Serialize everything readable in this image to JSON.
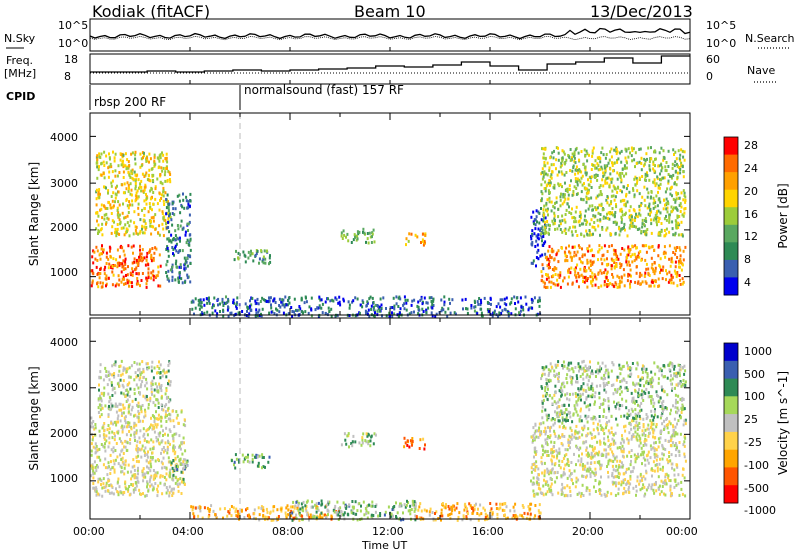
{
  "header": {
    "radar": "Kodiak (fitACF)",
    "beam": "Beam 10",
    "date": "13/Dec/2013"
  },
  "side_labels": {
    "nsky": "N.Sky",
    "freq_line1": "Freq.",
    "freq_line2": "[MHz]",
    "cpid": "CPID",
    "nsearch": "N.Search",
    "nave": "Nave"
  },
  "sky_axis": {
    "ticks_left": [
      "10^5",
      "10^0"
    ],
    "ticks_right": [
      "10^5",
      "10^0"
    ]
  },
  "freq_axis": {
    "ticks_left": [
      "18",
      "8"
    ],
    "ticks_right": [
      "60",
      "0"
    ]
  },
  "cpid": {
    "segments": [
      {
        "start_h": 0,
        "label": "rbsp 200 RF"
      },
      {
        "start_h": 6,
        "label": "normalsound (fast) 157 RF"
      }
    ]
  },
  "colors": {
    "power": [
      "#0000ee",
      "#3a5fb0",
      "#2e8a55",
      "#5aa860",
      "#9ccc3a",
      "#ffd400",
      "#ffa000",
      "#ff6a00",
      "#ff0000"
    ],
    "velocity": [
      "#ff0000",
      "#ff5500",
      "#ffa500",
      "#ffd24a",
      "#c0c0c0",
      "#a6d85a",
      "#2e8a55",
      "#3a5fb0",
      "#0000cc"
    ]
  },
  "chart_data": [
    {
      "type": "heatmap",
      "name": "power",
      "xlabel": "",
      "ylabel": "Slant Range [km]",
      "xlim_hours": [
        0,
        24
      ],
      "ylim_km": [
        180,
        4500
      ],
      "yticks": [
        "1000",
        "2000",
        "3000",
        "4000"
      ],
      "colorbar": {
        "label": "Power [dB]",
        "ticks": [
          "28",
          "24",
          "20",
          "16",
          "12",
          "8",
          "4"
        ]
      },
      "regions": [
        {
          "t": [
            0.0,
            2.8
          ],
          "r": [
            800,
            1700
          ],
          "level": 0.85
        },
        {
          "t": [
            0.2,
            3.2
          ],
          "r": [
            1900,
            3700
          ],
          "level": 0.6
        },
        {
          "t": [
            3.0,
            4.0
          ],
          "r": [
            900,
            2800
          ],
          "level": 0.2
        },
        {
          "t": [
            5.6,
            7.2
          ],
          "r": [
            1300,
            1600
          ],
          "level": 0.3
        },
        {
          "t": [
            10.0,
            11.4
          ],
          "r": [
            1750,
            2050
          ],
          "level": 0.4
        },
        {
          "t": [
            12.5,
            13.4
          ],
          "r": [
            1700,
            1950
          ],
          "level": 0.7
        },
        {
          "t": [
            4.0,
            18.0
          ],
          "r": [
            180,
            600
          ],
          "level": 0.15
        },
        {
          "t": [
            17.6,
            18.2
          ],
          "r": [
            1200,
            2500
          ],
          "level": 0.1
        },
        {
          "t": [
            18.0,
            23.8
          ],
          "r": [
            800,
            1700
          ],
          "level": 0.8
        },
        {
          "t": [
            18.0,
            23.8
          ],
          "r": [
            1900,
            3800
          ],
          "level": 0.5
        }
      ]
    },
    {
      "type": "heatmap",
      "name": "velocity",
      "xlabel": "Time UT",
      "ylabel": "Slant Range [km]",
      "xlim_hours": [
        0,
        24
      ],
      "ylim_km": [
        180,
        4500
      ],
      "xticks": [
        "00:00",
        "04:00",
        "08:00",
        "12:00",
        "16:00",
        "20:00",
        "00:00"
      ],
      "yticks": [
        "1000",
        "2000",
        "3000",
        "4000"
      ],
      "colorbar": {
        "label": "Velocity [m s^-1]",
        "ticks": [
          "1000",
          "500",
          "100",
          "25",
          "-25",
          "-100",
          "-500",
          "-1000"
        ]
      },
      "regions": [
        {
          "t": [
            0.0,
            3.8
          ],
          "r": [
            700,
            2600
          ],
          "level": 0.5
        },
        {
          "t": [
            0.3,
            3.2
          ],
          "r": [
            2600,
            3600
          ],
          "level": 0.55
        },
        {
          "t": [
            3.2,
            3.9
          ],
          "r": [
            1000,
            1500
          ],
          "level": 0.65
        },
        {
          "t": [
            5.6,
            7.2
          ],
          "r": [
            1300,
            1600
          ],
          "level": 0.7
        },
        {
          "t": [
            10.0,
            11.4
          ],
          "r": [
            1750,
            2050
          ],
          "level": 0.6
        },
        {
          "t": [
            12.5,
            13.4
          ],
          "r": [
            1700,
            1950
          ],
          "level": 0.15
        },
        {
          "t": [
            4.0,
            10.0
          ],
          "r": [
            180,
            500
          ],
          "level": 0.3
        },
        {
          "t": [
            8.0,
            13.0
          ],
          "r": [
            180,
            600
          ],
          "level": 0.65
        },
        {
          "t": [
            13.0,
            18.0
          ],
          "r": [
            180,
            550
          ],
          "level": 0.3
        },
        {
          "t": [
            17.6,
            23.8
          ],
          "r": [
            700,
            2300
          ],
          "level": 0.5
        },
        {
          "t": [
            18.0,
            23.8
          ],
          "r": [
            2300,
            3600
          ],
          "level": 0.6
        }
      ]
    }
  ]
}
